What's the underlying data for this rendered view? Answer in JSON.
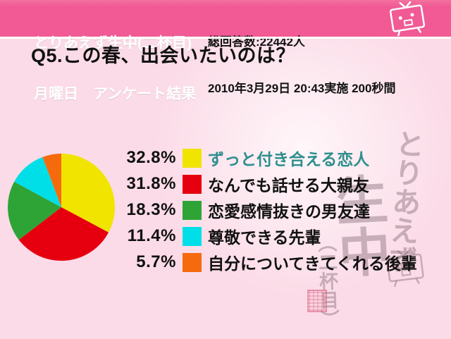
{
  "header": {
    "title_line1": "とりあえず生中(二杯目)",
    "title_line2": "月曜日　アンケート結果",
    "respondents": "総回答数:22442人",
    "datetime": "2010年3月29日 20:43実施 200秒間"
  },
  "question": "Q5.この春、出会いたいのは？",
  "chart_data": {
    "type": "pie",
    "title": "Q5.この春、出会いたいのは？",
    "labels": [
      "ずっと付き合える恋人",
      "なんでも話せる大親友",
      "恋愛感情抜きの男友達",
      "尊敬できる先輩",
      "自分についてきてくれる後輩"
    ],
    "values": [
      32.8,
      31.8,
      18.3,
      11.4,
      5.7
    ],
    "percent_labels": [
      "32.8%",
      "31.8%",
      "18.3%",
      "11.4%",
      " 5.7%"
    ],
    "colors": [
      "#F0E400",
      "#E6000F",
      "#2EA437",
      "#00DFE8",
      "#F66A0E"
    ],
    "label_colors": [
      "#2E8F8D",
      "#111111",
      "#111111",
      "#111111",
      "#111111"
    ],
    "start_angle_deg": 0,
    "direction": "clockwise",
    "legend_position": "right",
    "total_respondents": 22442
  },
  "watermark": {
    "col1": "とりあえず",
    "col2": "生中",
    "col3": "（二杯目）"
  },
  "colors": {
    "band_pink": "#F15A95",
    "background_pink": "#FBDBE7",
    "highlight_label": "#2E8F8D"
  }
}
